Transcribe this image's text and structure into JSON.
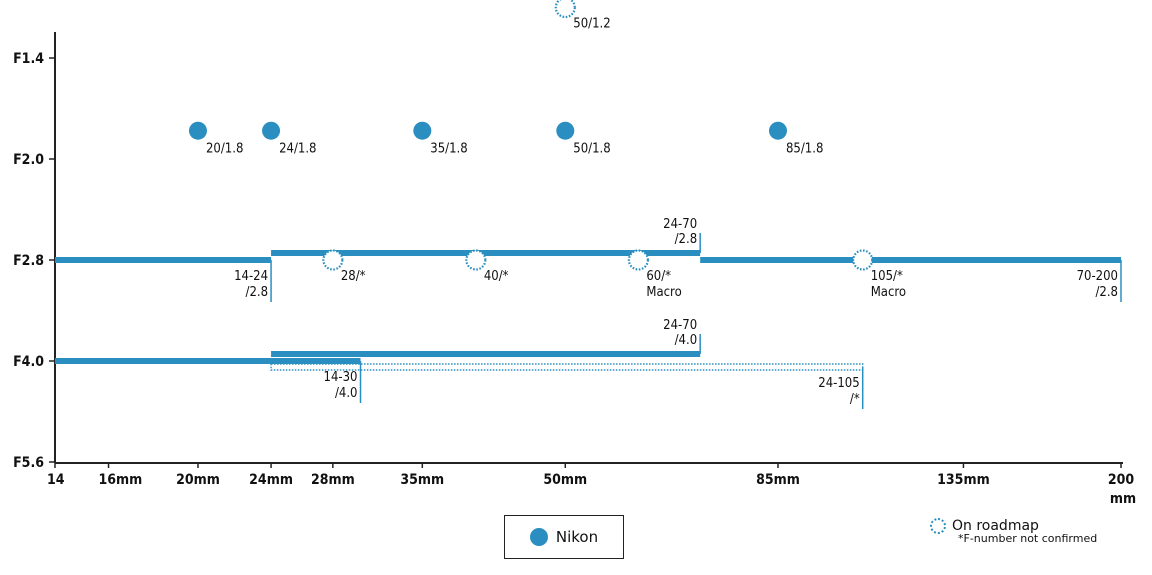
{
  "chart_data": {
    "type": "scatter",
    "title": "",
    "x_scale": "log",
    "x_range_mm": [
      14,
      200
    ],
    "x_ticks": [
      {
        "mm": 14,
        "label": "14"
      },
      {
        "mm": 16,
        "label": "16mm"
      },
      {
        "mm": 20,
        "label": "20mm"
      },
      {
        "mm": 24,
        "label": "24mm"
      },
      {
        "mm": 28,
        "label": "28mm"
      },
      {
        "mm": 35,
        "label": "35mm"
      },
      {
        "mm": 50,
        "label": "50mm"
      },
      {
        "mm": 85,
        "label": "85mm"
      },
      {
        "mm": 135,
        "label": "135mm"
      },
      {
        "mm": 200,
        "label": "200"
      }
    ],
    "x_tick_extra": "mm",
    "y_ticks": [
      "F1.4",
      "F2.0",
      "F2.8",
      "F4.0",
      "F5.6"
    ],
    "y_levels": {
      "F1.2": -0.5,
      "F1.4": 0,
      "F1.8": 0.72,
      "F2.0": 1,
      "F2.8": 2,
      "F4.0": 3,
      "F5.6": 4
    },
    "primes_nikon": [
      {
        "mm": 20,
        "f": "F1.8",
        "label": "20/1.8"
      },
      {
        "mm": 24,
        "f": "F1.8",
        "label": "24/1.8"
      },
      {
        "mm": 35,
        "f": "F1.8",
        "label": "35/1.8"
      },
      {
        "mm": 50,
        "f": "F1.8",
        "label": "50/1.8"
      },
      {
        "mm": 85,
        "f": "F1.8",
        "label": "85/1.8"
      }
    ],
    "primes_roadmap": [
      {
        "mm": 50,
        "f": "F1.2",
        "label": [
          "50/1.2"
        ]
      },
      {
        "mm": 28,
        "f": "F2.8",
        "label": [
          "28/*"
        ]
      },
      {
        "mm": 40,
        "f": "F2.8",
        "label": [
          "40/*"
        ]
      },
      {
        "mm": 60,
        "f": "F2.8",
        "label": [
          "60/*",
          "Macro"
        ]
      },
      {
        "mm": 105,
        "f": "F2.8",
        "label": [
          "105/*",
          "Macro"
        ]
      }
    ],
    "zooms": [
      {
        "from": 14,
        "to": 24,
        "f": "F2.8",
        "offset": 0,
        "style": "solid",
        "label": [
          "14-24",
          "/2.8"
        ],
        "label_side": "below"
      },
      {
        "from": 24,
        "to": 70,
        "f": "F2.8",
        "offset": -7,
        "style": "solid",
        "label": [
          "24-70",
          "/2.8"
        ],
        "label_side": "above"
      },
      {
        "from": 70,
        "to": 200,
        "f": "F2.8",
        "offset": 0,
        "style": "solid",
        "label": [
          "70-200",
          "/2.8"
        ],
        "label_side": "below"
      },
      {
        "from": 14,
        "to": 30,
        "f": "F4.0",
        "offset": 0,
        "style": "solid",
        "label": [
          "14-30",
          "/4.0"
        ],
        "label_side": "below"
      },
      {
        "from": 24,
        "to": 70,
        "f": "F4.0",
        "offset": -7,
        "style": "solid",
        "label": [
          "24-70",
          "/4.0"
        ],
        "label_side": "above"
      },
      {
        "from": 24,
        "to": 105,
        "f": "F4.0",
        "offset": 6,
        "style": "dotted",
        "label": [
          "24-105",
          "/*"
        ],
        "label_side": "below"
      }
    ],
    "colors": {
      "nikon": "#2a8fc0",
      "axis": "#222222"
    }
  },
  "legend": {
    "nikon_label": "Nikon",
    "roadmap_label": "On roadmap",
    "roadmap_note": "*F-number not confirmed"
  }
}
